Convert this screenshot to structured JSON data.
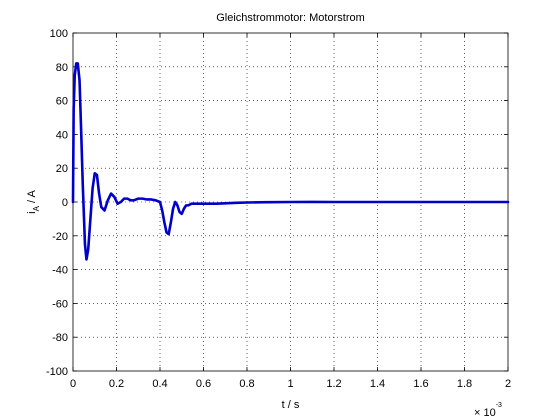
{
  "chart_data": {
    "type": "line",
    "title": "Gleichstrommotor: Motorstrom",
    "xlabel": "t / s",
    "ylabel": {
      "main": "i",
      "sub": "A",
      "rest": " / A"
    },
    "x_multiplier": {
      "base": "× 10",
      "exponent": "-3"
    },
    "xlim": [
      0,
      2
    ],
    "ylim": [
      -100,
      100
    ],
    "xticks": [
      0,
      0.2,
      0.4,
      0.6,
      0.8,
      1,
      1.2,
      1.4,
      1.6,
      1.8,
      2
    ],
    "xtick_labels": [
      "0",
      "0.2",
      "0.4",
      "0.6",
      "0.8",
      "1",
      "1.2",
      "1.4",
      "1.6",
      "1.8",
      "2"
    ],
    "yticks": [
      -100,
      -80,
      -60,
      -40,
      -20,
      0,
      20,
      40,
      60,
      80,
      100
    ],
    "ytick_labels": [
      "-100",
      "-80",
      "-60",
      "-40",
      "-20",
      "0",
      "20",
      "40",
      "60",
      "80",
      "100"
    ],
    "grid": true,
    "colors": {
      "line": "#0000c8"
    },
    "series": [
      {
        "x": [
          0,
          0.003,
          0.008,
          0.015,
          0.022,
          0.03,
          0.038,
          0.045,
          0.055,
          0.062,
          0.07,
          0.08,
          0.09,
          0.1,
          0.11,
          0.12,
          0.13,
          0.145,
          0.16,
          0.175,
          0.19,
          0.205,
          0.22,
          0.235,
          0.25,
          0.265,
          0.28,
          0.3,
          0.32,
          0.34,
          0.36,
          0.38,
          0.4,
          0.41,
          0.42,
          0.43,
          0.44,
          0.45,
          0.46,
          0.47,
          0.48,
          0.49,
          0.5,
          0.51,
          0.52,
          0.53,
          0.545,
          0.56,
          0.58,
          0.6,
          0.62,
          0.64,
          0.66,
          0.7,
          0.75,
          0.8,
          0.85,
          0.9,
          1,
          1.1,
          1.2,
          1.3,
          1.4,
          1.5,
          1.6,
          1.7,
          1.8,
          1.9,
          2
        ],
        "y": [
          0,
          55,
          75,
          82,
          82,
          72,
          40,
          10,
          -25,
          -34,
          -28,
          -10,
          8,
          17,
          16,
          5,
          -3,
          -5,
          1,
          5,
          3,
          -1,
          0,
          2,
          2,
          1,
          1,
          2,
          2,
          1.5,
          1.5,
          1,
          0,
          -5,
          -12,
          -18,
          -19,
          -12,
          -4,
          0,
          -2,
          -6,
          -7,
          -4,
          -2,
          -2,
          -1,
          -1,
          -1,
          -1,
          -1,
          -1,
          -1,
          -0.8,
          -0.5,
          -0.3,
          -0.2,
          -0.1,
          0,
          0.05,
          0,
          0,
          0,
          0,
          0,
          0,
          0,
          0,
          0
        ]
      }
    ]
  }
}
